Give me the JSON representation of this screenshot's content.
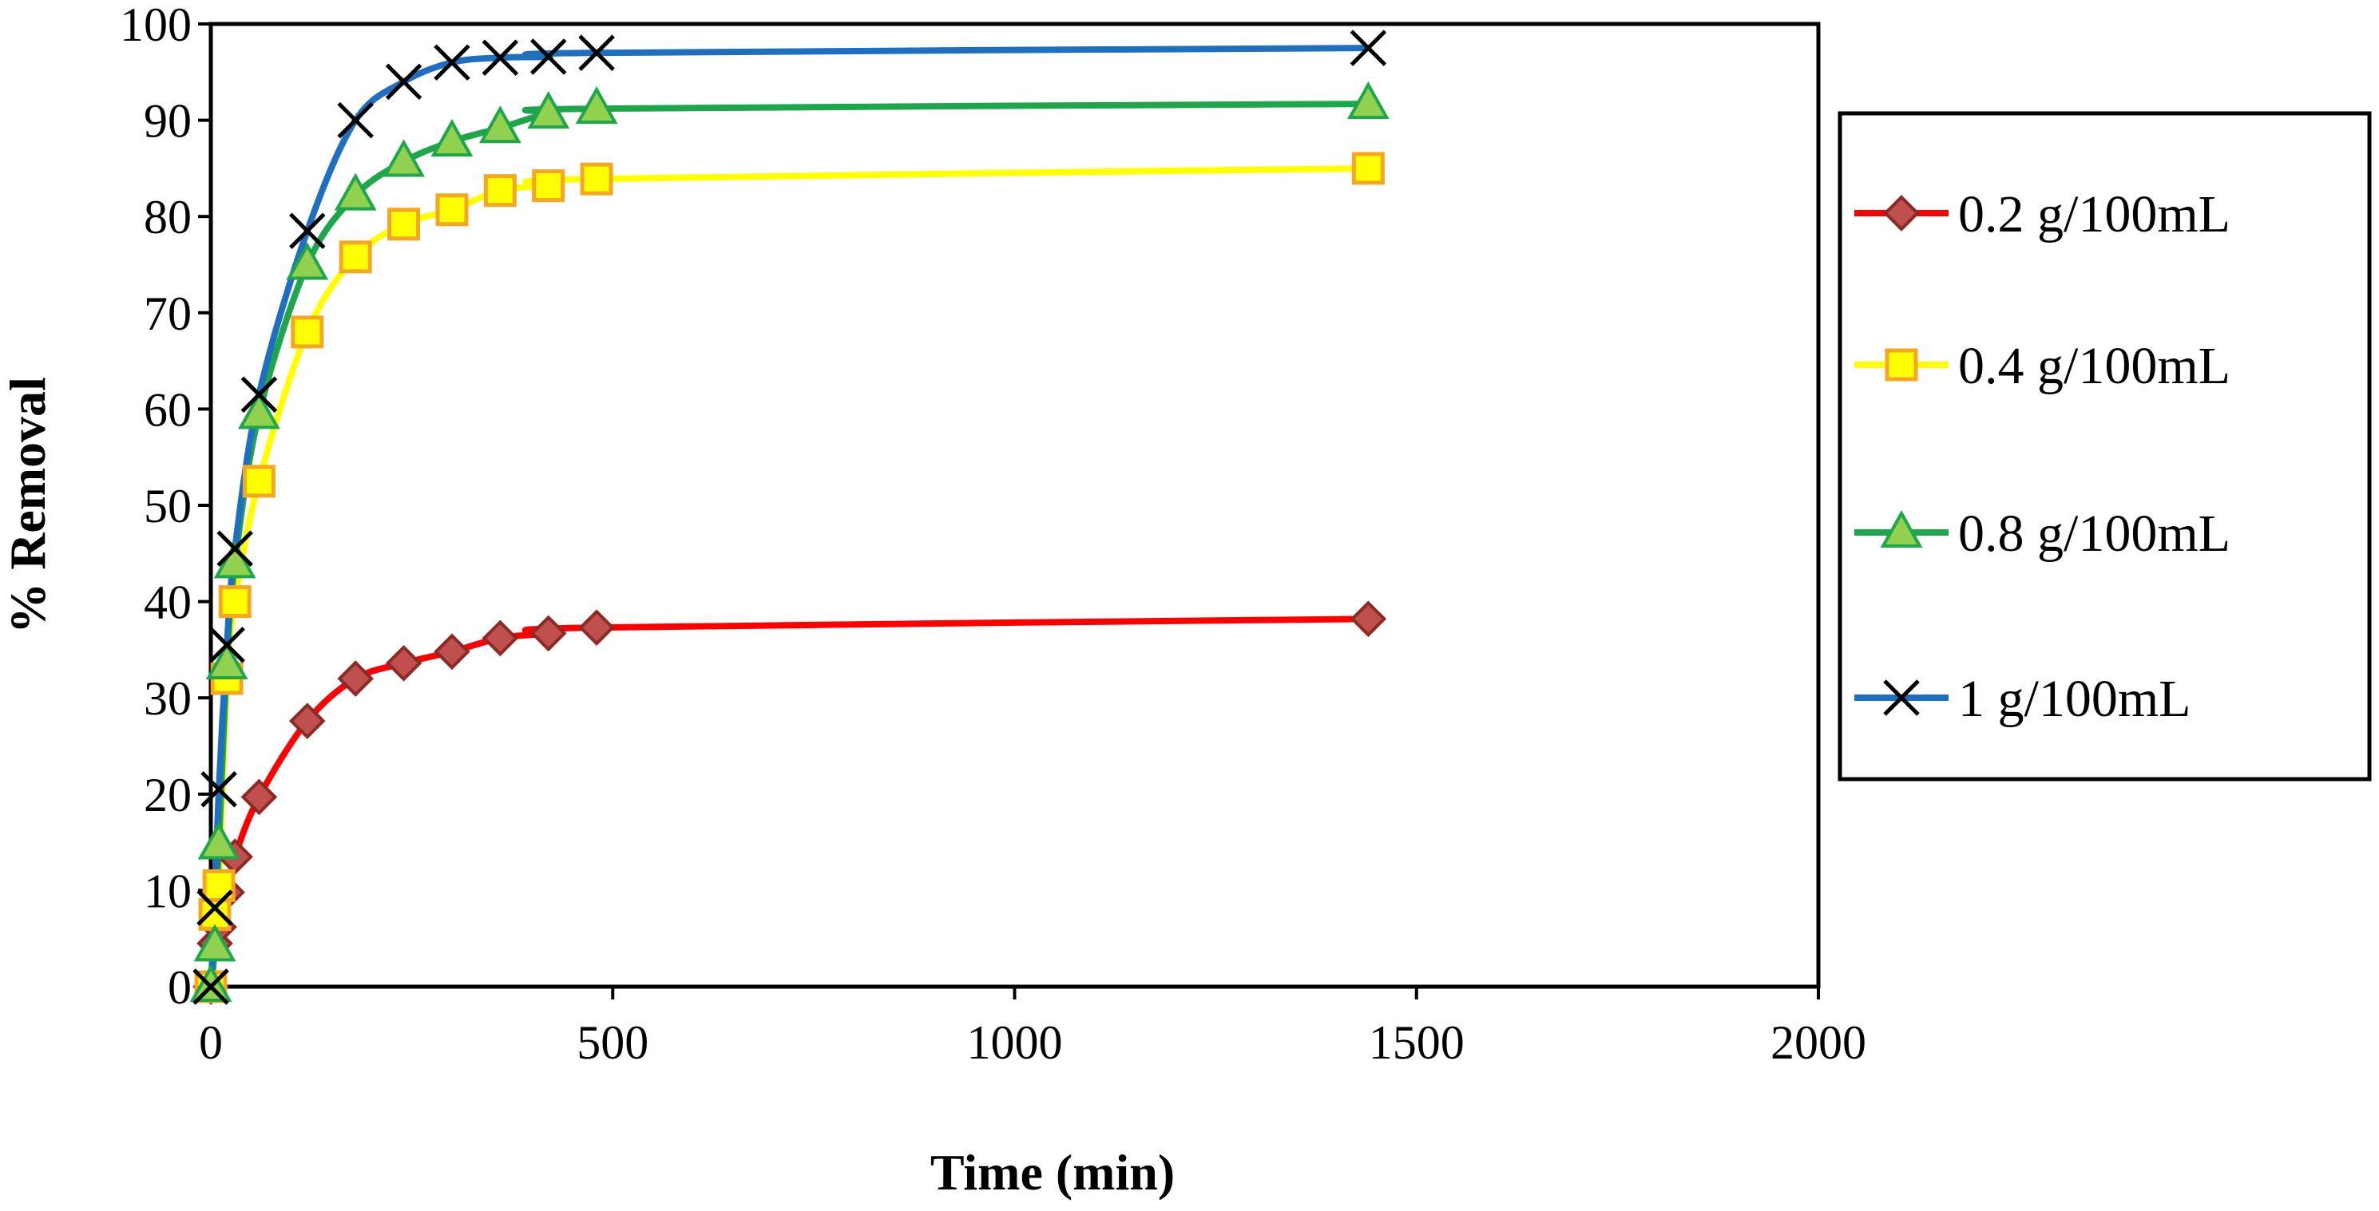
{
  "chart_data": {
    "type": "line",
    "title": "",
    "xlabel": "Time (min)",
    "ylabel": "% Removal",
    "xlim": [
      0,
      2000
    ],
    "ylim": [
      0,
      100
    ],
    "xticks": [
      0,
      500,
      1000,
      1500,
      2000
    ],
    "yticks": [
      0,
      10,
      20,
      30,
      40,
      50,
      60,
      70,
      80,
      90,
      100
    ],
    "grid": false,
    "legend_position": "right",
    "series": [
      {
        "name": "0.2 g/100mL",
        "line_color": "#FF0000",
        "marker": "diamond",
        "marker_fill": "#C0504D",
        "marker_stroke": "#8B2A27",
        "x": [
          0,
          5,
          10,
          20,
          30,
          60,
          120,
          180,
          240,
          300,
          360,
          420,
          480,
          1440
        ],
        "y": [
          0,
          4.5,
          6.2,
          9.8,
          13.5,
          19.7,
          27.6,
          32.0,
          33.6,
          34.8,
          36.2,
          36.7,
          37.3,
          38.2
        ]
      },
      {
        "name": "0.4 g/100mL",
        "line_color": "#FFFF00",
        "marker": "square",
        "marker_fill": "#FFFF00",
        "marker_stroke": "#F5A623",
        "x": [
          0,
          5,
          10,
          20,
          30,
          60,
          120,
          180,
          240,
          300,
          360,
          420,
          480,
          1440
        ],
        "y": [
          0,
          7.5,
          10.5,
          32.0,
          40.0,
          52.5,
          68.0,
          75.8,
          79.2,
          80.7,
          82.7,
          83.2,
          83.9,
          85.0
        ]
      },
      {
        "name": "0.8 g/100mL",
        "line_color": "#1EA64A",
        "marker": "triangle",
        "marker_fill": "#92D050",
        "marker_stroke": "#1EA64A",
        "x": [
          0,
          5,
          10,
          20,
          30,
          60,
          120,
          180,
          240,
          300,
          360,
          420,
          480,
          1440
        ],
        "y": [
          0,
          4.2,
          14.8,
          33.5,
          44.0,
          59.5,
          75.0,
          82.2,
          85.7,
          87.8,
          89.2,
          90.7,
          91.2,
          91.7
        ]
      },
      {
        "name": "1 g/100mL",
        "line_color": "#1F6FC1",
        "marker": "x",
        "marker_fill": "none",
        "marker_stroke": "#000000",
        "x": [
          0,
          5,
          10,
          20,
          30,
          60,
          120,
          180,
          240,
          300,
          360,
          420,
          480,
          1440
        ],
        "y": [
          0,
          8.2,
          20.5,
          35.5,
          45.5,
          61.5,
          78.5,
          90.0,
          94.0,
          96.0,
          96.5,
          96.6,
          97.0,
          97.5
        ]
      }
    ]
  }
}
